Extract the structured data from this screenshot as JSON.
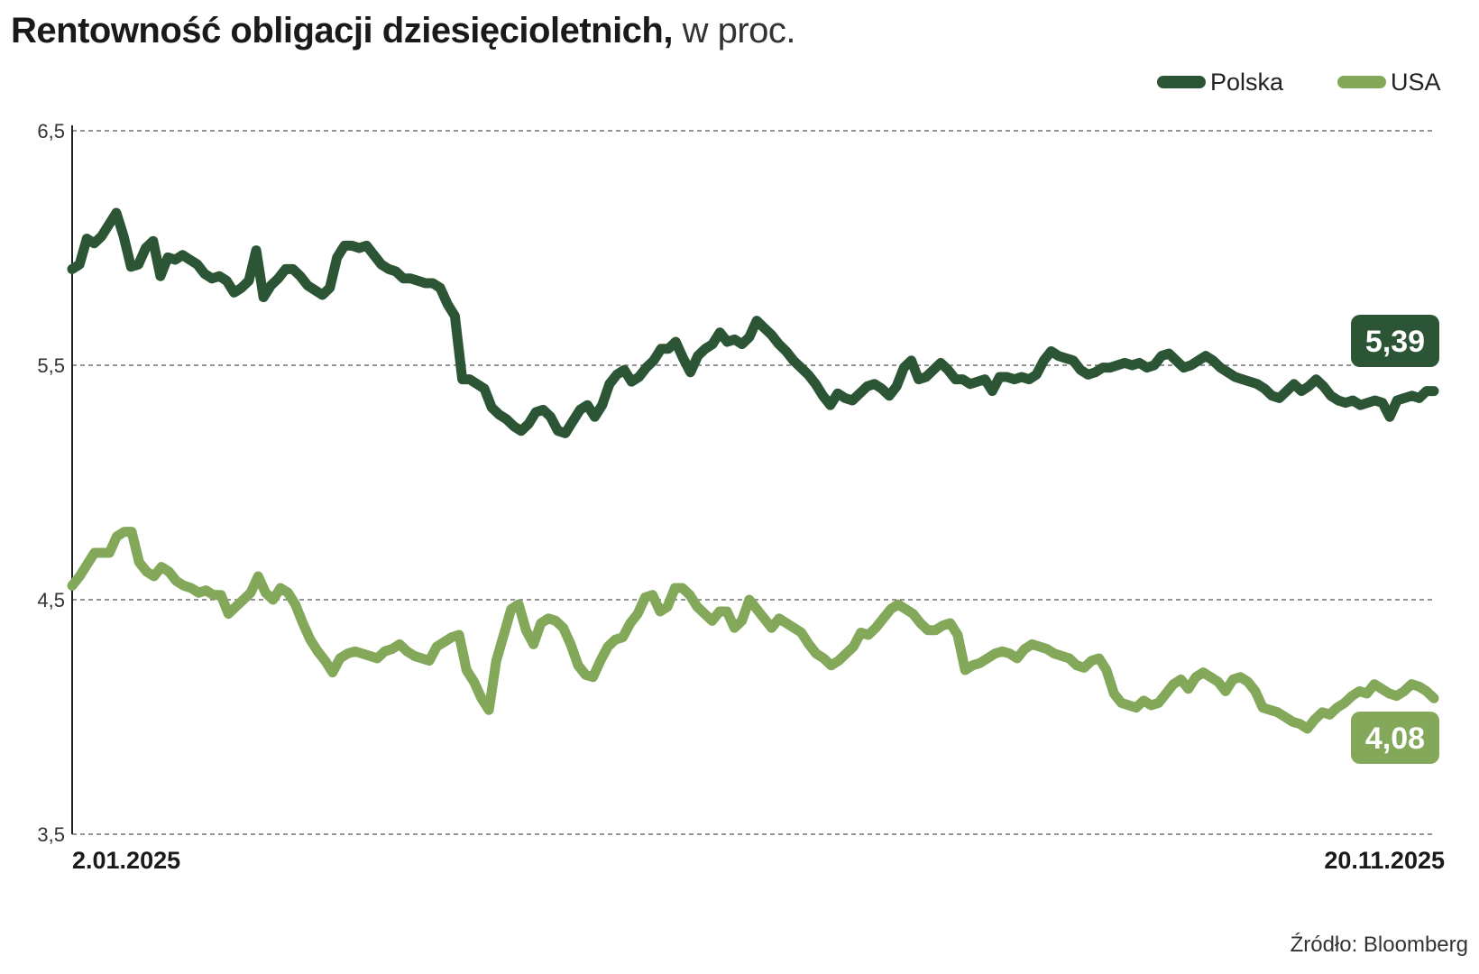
{
  "title": {
    "main": "Rentowność obligacji dziesięcioletnich,",
    "unit": " w proc."
  },
  "source": "Źródło: Bloomberg",
  "colors": {
    "polska": "#2c5535",
    "usa": "#83a85a",
    "grid": "#555555",
    "axis": "#222222"
  },
  "chart_data": {
    "type": "line",
    "ylim": [
      3.5,
      6.5
    ],
    "yticks": [
      "6,5",
      "5,5",
      "4,5",
      "3,5"
    ],
    "yticks_values": [
      6.5,
      5.5,
      4.5,
      3.5
    ],
    "x_start_label": "2.01.2025",
    "x_end_label": "20.11.2025",
    "grid": "horizontal dashed",
    "legend": "top-right",
    "series": [
      {
        "name": "Polska",
        "end_label": "5,39",
        "values": [
          5.91,
          5.93,
          6.04,
          6.02,
          6.05,
          6.1,
          6.15,
          6.05,
          5.92,
          5.93,
          6.0,
          6.03,
          5.88,
          5.96,
          5.95,
          5.97,
          5.95,
          5.93,
          5.89,
          5.87,
          5.88,
          5.86,
          5.81,
          5.83,
          5.86,
          5.99,
          5.79,
          5.84,
          5.87,
          5.91,
          5.91,
          5.88,
          5.84,
          5.82,
          5.8,
          5.83,
          5.96,
          6.01,
          6.01,
          6.0,
          6.01,
          5.97,
          5.93,
          5.91,
          5.9,
          5.87,
          5.87,
          5.86,
          5.85,
          5.85,
          5.83,
          5.76,
          5.71,
          5.44,
          5.44,
          5.42,
          5.4,
          5.32,
          5.29,
          5.27,
          5.24,
          5.22,
          5.25,
          5.3,
          5.31,
          5.28,
          5.22,
          5.21,
          5.26,
          5.31,
          5.33,
          5.28,
          5.33,
          5.42,
          5.46,
          5.48,
          5.43,
          5.45,
          5.49,
          5.52,
          5.57,
          5.57,
          5.6,
          5.53,
          5.47,
          5.54,
          5.57,
          5.59,
          5.64,
          5.6,
          5.61,
          5.59,
          5.62,
          5.69,
          5.66,
          5.63,
          5.59,
          5.56,
          5.52,
          5.49,
          5.46,
          5.42,
          5.37,
          5.33,
          5.38,
          5.36,
          5.35,
          5.38,
          5.41,
          5.42,
          5.4,
          5.37,
          5.41,
          5.49,
          5.52,
          5.44,
          5.45,
          5.48,
          5.51,
          5.48,
          5.44,
          5.44,
          5.42,
          5.43,
          5.44,
          5.39,
          5.45,
          5.45,
          5.44,
          5.45,
          5.44,
          5.46,
          5.52,
          5.56,
          5.54,
          5.53,
          5.52,
          5.48,
          5.46,
          5.47,
          5.49,
          5.49,
          5.5,
          5.51,
          5.5,
          5.51,
          5.49,
          5.5,
          5.54,
          5.55,
          5.52,
          5.49,
          5.5,
          5.52,
          5.54,
          5.52,
          5.49,
          5.47,
          5.45,
          5.44,
          5.43,
          5.42,
          5.4,
          5.37,
          5.36,
          5.39,
          5.42,
          5.39,
          5.41,
          5.44,
          5.41,
          5.37,
          5.35,
          5.34,
          5.35,
          5.33,
          5.34,
          5.35,
          5.34,
          5.28,
          5.35,
          5.36,
          5.37,
          5.36,
          5.39,
          5.39
        ]
      },
      {
        "name": "USA",
        "end_label": "4,08",
        "values": [
          4.56,
          4.6,
          4.65,
          4.7,
          4.7,
          4.7,
          4.77,
          4.79,
          4.79,
          4.66,
          4.62,
          4.6,
          4.64,
          4.62,
          4.58,
          4.56,
          4.55,
          4.53,
          4.54,
          4.52,
          4.52,
          4.44,
          4.47,
          4.5,
          4.53,
          4.6,
          4.53,
          4.5,
          4.55,
          4.53,
          4.48,
          4.4,
          4.33,
          4.28,
          4.24,
          4.19,
          4.25,
          4.27,
          4.28,
          4.27,
          4.26,
          4.25,
          4.28,
          4.29,
          4.31,
          4.28,
          4.26,
          4.25,
          4.24,
          4.3,
          4.32,
          4.34,
          4.35,
          4.2,
          4.15,
          4.08,
          4.03,
          4.24,
          4.35,
          4.46,
          4.48,
          4.37,
          4.31,
          4.4,
          4.42,
          4.41,
          4.38,
          4.31,
          4.22,
          4.18,
          4.17,
          4.24,
          4.3,
          4.33,
          4.34,
          4.4,
          4.44,
          4.51,
          4.52,
          4.45,
          4.47,
          4.55,
          4.55,
          4.52,
          4.47,
          4.44,
          4.41,
          4.45,
          4.45,
          4.38,
          4.41,
          4.5,
          4.46,
          4.42,
          4.38,
          4.42,
          4.4,
          4.38,
          4.36,
          4.31,
          4.27,
          4.25,
          4.22,
          4.24,
          4.27,
          4.3,
          4.36,
          4.35,
          4.38,
          4.42,
          4.46,
          4.48,
          4.46,
          4.44,
          4.4,
          4.37,
          4.37,
          4.39,
          4.4,
          4.35,
          4.2,
          4.22,
          4.23,
          4.25,
          4.27,
          4.28,
          4.27,
          4.25,
          4.29,
          4.31,
          4.3,
          4.29,
          4.27,
          4.26,
          4.25,
          4.22,
          4.21,
          4.24,
          4.25,
          4.2,
          4.1,
          4.06,
          4.05,
          4.04,
          4.07,
          4.05,
          4.06,
          4.1,
          4.14,
          4.16,
          4.12,
          4.17,
          4.19,
          4.17,
          4.15,
          4.11,
          4.16,
          4.17,
          4.15,
          4.11,
          4.04,
          4.03,
          4.02,
          4.0,
          3.98,
          3.97,
          3.95,
          3.99,
          4.02,
          4.01,
          4.04,
          4.06,
          4.09,
          4.11,
          4.1,
          4.14,
          4.12,
          4.1,
          4.09,
          4.11,
          4.14,
          4.13,
          4.11,
          4.08
        ]
      }
    ]
  }
}
